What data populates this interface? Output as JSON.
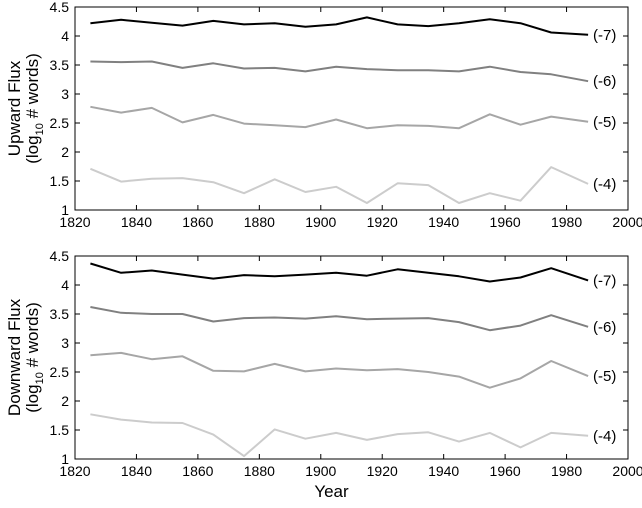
{
  "chart_data": [
    {
      "type": "line",
      "title": "",
      "xlabel": "",
      "ylabel": [
        "Upward Flux",
        "(log",
        "10",
        " # words)"
      ],
      "xlim": [
        1820,
        2000
      ],
      "ylim": [
        1,
        4.5
      ],
      "xticks": [
        "1820",
        "1840",
        "1860",
        "1880",
        "1900",
        "1920",
        "1940",
        "1960",
        "1980",
        "2000"
      ],
      "yticks": [
        "1",
        "1.5",
        "2",
        "2.5",
        "3",
        "3.5",
        "4",
        "4.5"
      ],
      "grid": false,
      "legend": "inline labels at right end of lines",
      "x": [
        1825,
        1835,
        1845,
        1855,
        1865,
        1875,
        1885,
        1895,
        1905,
        1915,
        1925,
        1935,
        1945,
        1955,
        1965,
        1975,
        1987
      ],
      "series": [
        {
          "name": "(-7)",
          "color": "#000000",
          "values": [
            4.22,
            4.28,
            4.23,
            4.18,
            4.26,
            4.2,
            4.22,
            4.16,
            4.2,
            4.32,
            4.2,
            4.17,
            4.22,
            4.29,
            4.22,
            4.06,
            4.02
          ]
        },
        {
          "name": "(-6)",
          "color": "#808080",
          "values": [
            3.56,
            3.55,
            3.56,
            3.45,
            3.53,
            3.44,
            3.45,
            3.39,
            3.47,
            3.43,
            3.41,
            3.41,
            3.39,
            3.47,
            3.38,
            3.34,
            3.22
          ]
        },
        {
          "name": "(-5)",
          "color": "#a6a6a6",
          "values": [
            2.78,
            2.68,
            2.76,
            2.51,
            2.64,
            2.49,
            2.46,
            2.43,
            2.56,
            2.41,
            2.46,
            2.45,
            2.41,
            2.65,
            2.47,
            2.61,
            2.52
          ]
        },
        {
          "name": "(-4)",
          "color": "#cccccc",
          "values": [
            1.71,
            1.49,
            1.54,
            1.55,
            1.48,
            1.29,
            1.53,
            1.31,
            1.4,
            1.12,
            1.46,
            1.43,
            1.12,
            1.29,
            1.16,
            1.74,
            1.45
          ]
        }
      ]
    },
    {
      "type": "line",
      "title": "",
      "xlabel": "Year",
      "ylabel": [
        "Downward Flux",
        "(log",
        "10",
        " # words)"
      ],
      "xlim": [
        1820,
        2000
      ],
      "ylim": [
        1,
        4.5
      ],
      "xticks": [
        "1820",
        "1840",
        "1860",
        "1880",
        "1900",
        "1920",
        "1940",
        "1960",
        "1980",
        "2000"
      ],
      "yticks": [
        "1",
        "1.5",
        "2",
        "2.5",
        "3",
        "3.5",
        "4",
        "4.5"
      ],
      "grid": false,
      "legend": "inline labels at right end of lines",
      "x": [
        1825,
        1835,
        1845,
        1855,
        1865,
        1875,
        1885,
        1895,
        1905,
        1915,
        1925,
        1935,
        1945,
        1955,
        1965,
        1975,
        1987
      ],
      "series": [
        {
          "name": "(-7)",
          "color": "#000000",
          "values": [
            4.37,
            4.21,
            4.25,
            4.18,
            4.11,
            4.17,
            4.15,
            4.18,
            4.21,
            4.16,
            4.27,
            4.21,
            4.15,
            4.06,
            4.13,
            4.29,
            4.08
          ]
        },
        {
          "name": "(-6)",
          "color": "#808080",
          "values": [
            3.62,
            3.52,
            3.5,
            3.5,
            3.37,
            3.43,
            3.44,
            3.42,
            3.46,
            3.41,
            3.42,
            3.43,
            3.36,
            3.22,
            3.3,
            3.48,
            3.28
          ]
        },
        {
          "name": "(-5)",
          "color": "#a6a6a6",
          "values": [
            2.79,
            2.83,
            2.72,
            2.77,
            2.52,
            2.51,
            2.64,
            2.51,
            2.56,
            2.53,
            2.55,
            2.5,
            2.42,
            2.23,
            2.39,
            2.69,
            2.43
          ]
        },
        {
          "name": "(-4)",
          "color": "#cccccc",
          "values": [
            1.77,
            1.68,
            1.63,
            1.62,
            1.42,
            1.05,
            1.51,
            1.35,
            1.45,
            1.33,
            1.43,
            1.46,
            1.3,
            1.45,
            1.2,
            1.45,
            1.4
          ]
        }
      ]
    }
  ]
}
